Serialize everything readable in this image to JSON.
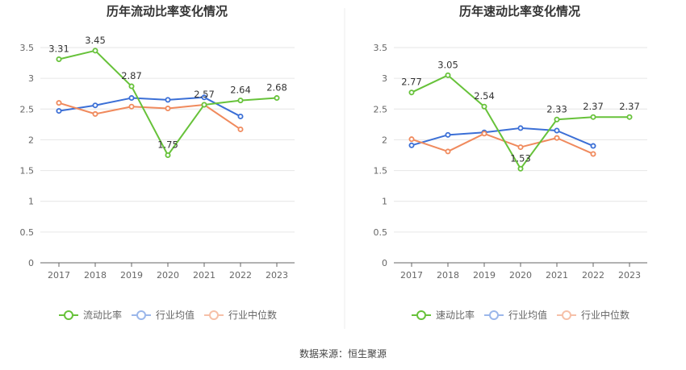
{
  "source": "数据来源：恒生聚源",
  "colors": {
    "primary": "#67c23a",
    "industry_avg": "#3b6fd6",
    "industry_median": "#f08a5d",
    "legend_avg": "#9bb7ea",
    "legend_median": "#f6c0a8",
    "grid": "#e6e6e6",
    "axis": "#666666"
  },
  "chart_data": [
    {
      "type": "line",
      "title": "历年流动比率变化情况",
      "x": [
        "2017",
        "2018",
        "2019",
        "2020",
        "2021",
        "2022",
        "2023"
      ],
      "ylim": [
        0,
        3.5
      ],
      "yticks": [
        "0",
        "0.5",
        "1",
        "1.5",
        "2",
        "2.5",
        "3",
        "3.5"
      ],
      "grid": true,
      "legend_position": "bottom",
      "series": [
        {
          "name": "流动比率",
          "values": [
            3.31,
            3.45,
            2.87,
            1.75,
            2.57,
            2.64,
            2.68
          ],
          "labels": [
            "3.31",
            "3.45",
            "2.87",
            "1.75",
            "2.57",
            "2.64",
            "2.68"
          ]
        },
        {
          "name": "行业均值",
          "values": [
            2.47,
            2.56,
            2.68,
            2.65,
            2.69,
            2.38,
            null
          ]
        },
        {
          "name": "行业中位数",
          "values": [
            2.6,
            2.42,
            2.54,
            2.51,
            2.57,
            2.17,
            null
          ]
        }
      ]
    },
    {
      "type": "line",
      "title": "历年速动比率变化情况",
      "x": [
        "2017",
        "2018",
        "2019",
        "2020",
        "2021",
        "2022",
        "2023"
      ],
      "ylim": [
        0,
        3.5
      ],
      "yticks": [
        "0",
        "0.5",
        "1",
        "1.5",
        "2",
        "2.5",
        "3",
        "3.5"
      ],
      "grid": true,
      "legend_position": "bottom",
      "series": [
        {
          "name": "速动比率",
          "values": [
            2.77,
            3.05,
            2.54,
            1.53,
            2.33,
            2.37,
            2.37
          ],
          "labels": [
            "2.77",
            "3.05",
            "2.54",
            "1.53",
            "2.33",
            "2.37",
            "2.37"
          ]
        },
        {
          "name": "行业均值",
          "values": [
            1.91,
            2.08,
            2.12,
            2.19,
            2.15,
            1.9,
            null
          ]
        },
        {
          "name": "行业中位数",
          "values": [
            2.01,
            1.81,
            2.1,
            1.88,
            2.03,
            1.77,
            null
          ]
        }
      ]
    }
  ]
}
